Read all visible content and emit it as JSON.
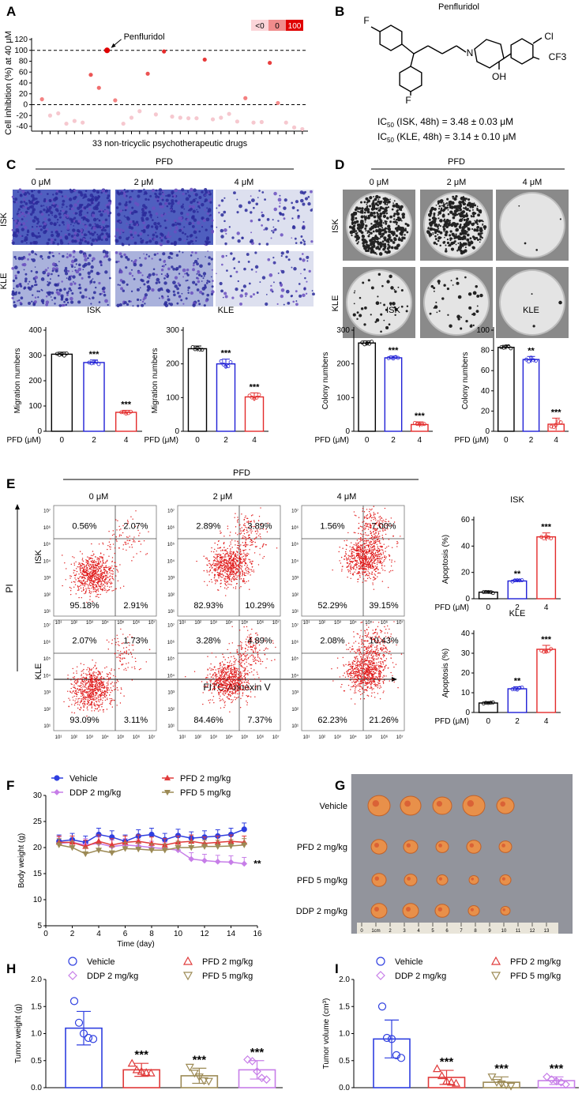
{
  "panel_labels": [
    "A",
    "B",
    "C",
    "D",
    "E",
    "F",
    "G",
    "H",
    "I"
  ],
  "panelA": {
    "ylabel": "Cell inhibition (%) at 40 μM",
    "xlabel": "33 non-tricyclic psychotherapeutic drugs",
    "yticks": [
      "120",
      "100",
      "80",
      "60",
      "40",
      "20",
      "0",
      "-20",
      "-40"
    ],
    "highlight": "Penfluridol",
    "legend": [
      "<0",
      "0",
      "100"
    ],
    "values": [
      10,
      -20,
      -16,
      -35,
      -30,
      -33,
      55,
      31,
      100,
      8,
      -35,
      -24,
      -12,
      57,
      -18,
      98,
      -22,
      -24,
      -25,
      -25,
      83,
      -27,
      -24,
      -17,
      -31,
      12,
      -33,
      -32,
      77,
      3,
      -33,
      -42,
      -45
    ]
  },
  "panelB": {
    "title": "Penfluridol",
    "atoms": [
      "F",
      "N",
      "Cl",
      "CF3",
      "OH",
      "F"
    ],
    "ic50_isk": "IC50 (ISK, 48h) = 3.48 ± 0.03 μM",
    "ic50_kle": "IC50 (KLE, 48h) = 3.14 ± 0.10 μM",
    "ic50_main": "IC",
    "ic50_sub": "50",
    "ic50_isk_rest": " (ISK, 48h) = 3.48 ± 0.03 μM",
    "ic50_kle_rest": " (KLE, 48h) = 3.14 ± 0.10 μM"
  },
  "panelC": {
    "title": "PFD",
    "doses": [
      "0 μM",
      "2 μM",
      "4 μM"
    ],
    "rows": [
      "ISK",
      "KLE"
    ],
    "charts": [
      {
        "cell": "ISK",
        "ylabel": "Migration numbers",
        "yticks": [
          "0",
          "100",
          "200",
          "300",
          "400"
        ],
        "ymax": 400,
        "values": [
          305,
          272,
          75
        ],
        "errors": [
          8,
          10,
          8
        ],
        "sig": [
          "",
          "***",
          "***"
        ],
        "colors": [
          "#000000",
          "#1f1fd6",
          "#e32b2b"
        ]
      },
      {
        "cell": "KLE",
        "ylabel": "Migration numbers",
        "yticks": [
          "0",
          "100",
          "200",
          "300"
        ],
        "ymax": 300,
        "values": [
          245,
          200,
          102
        ],
        "errors": [
          8,
          14,
          12
        ],
        "sig": [
          "",
          "***",
          "***"
        ],
        "colors": [
          "#000000",
          "#1f1fd6",
          "#e32b2b"
        ]
      }
    ],
    "xlabel": "PFD (μM)",
    "xticks": [
      "0",
      "2",
      "4"
    ]
  },
  "panelD": {
    "title": "PFD",
    "doses": [
      "0 μM",
      "2 μM",
      "4 μM"
    ],
    "rows": [
      "ISK",
      "KLE"
    ],
    "charts": [
      {
        "cell": "ISK",
        "ylabel": "Colony numbers",
        "yticks": [
          "0",
          "100",
          "200",
          "300"
        ],
        "ymax": 300,
        "values": [
          262,
          218,
          20
        ],
        "errors": [
          6,
          5,
          8
        ],
        "sig": [
          "",
          "***",
          "***"
        ],
        "colors": [
          "#000000",
          "#1f1fd6",
          "#e32b2b"
        ]
      },
      {
        "cell": "KLE",
        "ylabel": "Colony numbers",
        "yticks": [
          "0",
          "20",
          "40",
          "60",
          "80",
          "100"
        ],
        "ymax": 100,
        "values": [
          83,
          71,
          7
        ],
        "errors": [
          2,
          3,
          6
        ],
        "sig": [
          "",
          "**",
          "***"
        ],
        "colors": [
          "#000000",
          "#1f1fd6",
          "#e32b2b"
        ]
      }
    ],
    "xlabel": "PFD (μM)",
    "xticks": [
      "0",
      "2",
      "4"
    ]
  },
  "panelE": {
    "title": "PFD",
    "doses": [
      "0 μM",
      "2 μM",
      "4 μM"
    ],
    "rows": [
      "ISK",
      "KLE"
    ],
    "yaxis": "PI",
    "xaxis": "FITC-Annexin V",
    "log_ticks": [
      "10¹",
      "10²",
      "10³",
      "10⁴",
      "10⁵",
      "10⁶",
      "10⁷"
    ],
    "quadrants": [
      [
        [
          "0.56%",
          "2.07%",
          "95.18%",
          "2.91%"
        ],
        [
          "2.89%",
          "3.89%",
          "82.93%",
          "10.29%"
        ],
        [
          "1.56%",
          "7.00%",
          "52.29%",
          "39.15%"
        ]
      ],
      [
        [
          "2.07%",
          "1.73%",
          "93.09%",
          "3.11%"
        ],
        [
          "3.28%",
          "4.89%",
          "84.46%",
          "7.37%"
        ],
        [
          "2.08%",
          "10.43%",
          "62.23%",
          "21.26%"
        ]
      ]
    ],
    "charts": [
      {
        "cell": "ISK",
        "ylabel": "Apoptosis (%)",
        "yticks": [
          "0",
          "20",
          "40",
          "60"
        ],
        "ymax": 60,
        "values": [
          5,
          13.5,
          47
        ],
        "errors": [
          1,
          1,
          3
        ],
        "sig": [
          "",
          "**",
          "***"
        ],
        "colors": [
          "#000000",
          "#1f1fd6",
          "#e32b2b"
        ]
      },
      {
        "cell": "KLE",
        "ylabel": "Apoptosis (%)",
        "yticks": [
          "0",
          "10",
          "20",
          "30",
          "40"
        ],
        "ymax": 40,
        "values": [
          4.8,
          12,
          32
        ],
        "errors": [
          0.5,
          1,
          2
        ],
        "sig": [
          "",
          "**",
          "***"
        ],
        "colors": [
          "#000000",
          "#1f1fd6",
          "#e32b2b"
        ]
      }
    ],
    "xlabel": "PFD (μM)",
    "xticks": [
      "0",
      "2",
      "4"
    ]
  },
  "panelF": {
    "xlabel": "Time (day)",
    "ylabel": "Body weight (g)",
    "yticks": [
      "5",
      "10",
      "15",
      "20",
      "25",
      "30"
    ],
    "xticks": [
      "0",
      "2",
      "4",
      "6",
      "8",
      "10",
      "12",
      "14",
      "16"
    ],
    "sig": "**",
    "series": [
      {
        "name": "Vehicle",
        "color": "#2f3fe0",
        "marker": "circle",
        "values": [
          21.2,
          21.5,
          21,
          22.5,
          22,
          21.2,
          22.2,
          22.5,
          21.5,
          22.3,
          21.8,
          22,
          22.2,
          22.5,
          23.5
        ]
      },
      {
        "name": "DDP 2 mg/kg",
        "color": "#c77ee8",
        "marker": "diamond",
        "values": [
          20.8,
          21,
          20.5,
          20.8,
          20.2,
          20.5,
          20.3,
          20,
          19.8,
          19.5,
          17.8,
          17.5,
          17.3,
          17.2,
          16.9
        ]
      },
      {
        "name": "PFD 2 mg/kg",
        "color": "#e03a3a",
        "marker": "triangle",
        "values": [
          21,
          21,
          20.2,
          21.2,
          20.5,
          21,
          21.2,
          20.8,
          20.5,
          21,
          21.2,
          20.8,
          21,
          21.2,
          21
        ]
      },
      {
        "name": "PFD 5 mg/kg",
        "color": "#9c8a55",
        "marker": "triangle-down",
        "values": [
          20.5,
          20,
          18.8,
          19.5,
          19,
          19.8,
          19.7,
          19.5,
          19.5,
          20,
          20,
          20.2,
          20.2,
          20.3,
          20.5
        ]
      }
    ]
  },
  "panelG": {
    "rows": [
      "Vehicle",
      "PFD 2 mg/kg",
      "PFD 5 mg/kg",
      "DDP 2 mg/kg"
    ],
    "ruler": [
      "0",
      "1cm",
      "2",
      "3",
      "4",
      "5",
      "6",
      "7",
      "8",
      "9",
      "10",
      "11",
      "12",
      "13"
    ]
  },
  "panelH": {
    "ylabel": "Tumor weight (g)",
    "yticks": [
      "0.0",
      "0.5",
      "1.0",
      "1.5",
      "2.0"
    ],
    "ymax": 2.0,
    "groups": [
      {
        "name": "Vehicle",
        "color": "#2f3fe0",
        "marker": "circle",
        "value": 1.1,
        "error": 0.31,
        "sig": "",
        "points": [
          1.6,
          1.2,
          1.0,
          0.92,
          0.9
        ]
      },
      {
        "name": "PFD 2 mg/kg",
        "color": "#e03a3a",
        "marker": "triangle",
        "value": 0.33,
        "error": 0.12,
        "sig": "***",
        "points": [
          0.45,
          0.33,
          0.3,
          0.28,
          0.27
        ]
      },
      {
        "name": "PFD 5 mg/kg",
        "color": "#9c8a55",
        "marker": "triangle-down",
        "value": 0.22,
        "error": 0.14,
        "sig": "***",
        "points": [
          0.38,
          0.27,
          0.2,
          0.13,
          0.12
        ]
      },
      {
        "name": "DDP 2 mg/kg",
        "color": "#c77ee8",
        "marker": "diamond",
        "value": 0.33,
        "error": 0.17,
        "sig": "***",
        "points": [
          0.52,
          0.49,
          0.3,
          0.18,
          0.15
        ]
      }
    ],
    "legend_order": [
      "Vehicle",
      "PFD 2 mg/kg",
      "DDP 2 mg/kg",
      "PFD 5 mg/kg"
    ]
  },
  "panelI": {
    "ylabel": "Tumor volume (cm³)",
    "yticks": [
      "0.0",
      "0.5",
      "1.0",
      "1.5",
      "2.0"
    ],
    "ymax": 2.0,
    "groups": [
      {
        "name": "Vehicle",
        "color": "#2f3fe0",
        "marker": "circle",
        "value": 0.9,
        "error": 0.35,
        "sig": "",
        "points": [
          1.5,
          0.92,
          0.9,
          0.6,
          0.55
        ]
      },
      {
        "name": "PFD 2 mg/kg",
        "color": "#e03a3a",
        "marker": "triangle",
        "value": 0.19,
        "error": 0.13,
        "sig": "***",
        "points": [
          0.35,
          0.22,
          0.12,
          0.1,
          0.08
        ]
      },
      {
        "name": "PFD 5 mg/kg",
        "color": "#9c8a55",
        "marker": "triangle-down",
        "value": 0.1,
        "error": 0.1,
        "sig": "***",
        "points": [
          0.2,
          0.1,
          0.07,
          0.05,
          0.03
        ]
      },
      {
        "name": "DDP 2 mg/kg",
        "color": "#c77ee8",
        "marker": "diamond",
        "value": 0.13,
        "error": 0.07,
        "sig": "***",
        "points": [
          0.2,
          0.15,
          0.12,
          0.1,
          0.06
        ]
      }
    ],
    "legend_order": [
      "Vehicle",
      "PFD 2 mg/kg",
      "DDP 2 mg/kg",
      "PFD 5 mg/kg"
    ]
  }
}
